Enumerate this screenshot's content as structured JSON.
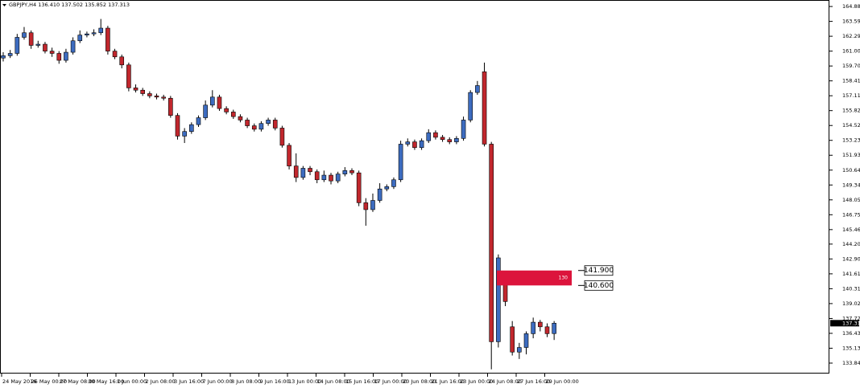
{
  "chart_data": {
    "type": "candlestick",
    "title": "GBPJPY,H4  136.410 137.502 135.852 137.313",
    "open": [
      160.4,
      160.6,
      160.8,
      162.2,
      162.6,
      161.5,
      161.6,
      161.0,
      160.8,
      160.2,
      160.9,
      161.9,
      162.4,
      162.5,
      162.6,
      163.0,
      161.0,
      160.5,
      159.8,
      157.8,
      157.6,
      157.3,
      157.1,
      157.0,
      156.9,
      155.4,
      153.6,
      154.0,
      154.6,
      155.2,
      156.3,
      157.0,
      156.0,
      155.7,
      155.3,
      155.0,
      154.5,
      154.2,
      154.7,
      155.0,
      154.3,
      152.8,
      151.0,
      150.0,
      150.8,
      150.5,
      149.8,
      150.2,
      149.7,
      150.3,
      150.6,
      150.4,
      147.8,
      147.2,
      148.0,
      149.0,
      149.2,
      149.8,
      152.9,
      153.1,
      152.6,
      153.2,
      153.9,
      153.5,
      153.3,
      153.1,
      153.4,
      155.0,
      157.4,
      159.2,
      152.9,
      135.7,
      141.0,
      137.0,
      134.8,
      135.2,
      136.4,
      137.4,
      137.0,
      136.41
    ],
    "high": [
      160.9,
      161.1,
      162.5,
      163.1,
      162.8,
      161.9,
      161.8,
      161.3,
      161.0,
      161.2,
      162.2,
      162.8,
      162.7,
      162.9,
      163.8,
      163.2,
      161.2,
      160.7,
      160.0,
      158.1,
      157.8,
      157.5,
      157.3,
      157.2,
      157.1,
      155.6,
      154.3,
      154.8,
      155.4,
      156.7,
      157.6,
      157.2,
      156.2,
      155.9,
      155.5,
      155.2,
      154.7,
      154.9,
      155.2,
      155.2,
      154.5,
      153.0,
      152.1,
      151.0,
      151.0,
      150.7,
      150.6,
      150.4,
      150.5,
      150.9,
      150.8,
      150.6,
      148.2,
      148.6,
      149.5,
      149.4,
      150.0,
      153.2,
      153.4,
      153.3,
      153.4,
      154.2,
      154.1,
      153.7,
      153.5,
      153.6,
      155.3,
      157.6,
      158.4,
      160.0,
      153.1,
      143.3,
      141.7,
      137.5,
      135.6,
      136.6,
      137.8,
      137.6,
      137.3,
      137.502
    ],
    "low": [
      160.1,
      160.4,
      160.6,
      162.0,
      161.2,
      161.3,
      160.8,
      160.5,
      159.9,
      160.0,
      160.7,
      161.7,
      162.2,
      162.3,
      162.4,
      160.7,
      160.3,
      159.5,
      157.5,
      157.4,
      157.1,
      156.9,
      156.8,
      156.7,
      155.2,
      153.3,
      153.0,
      153.8,
      154.4,
      155.0,
      156.1,
      155.8,
      155.5,
      155.1,
      154.8,
      154.3,
      154.0,
      154.0,
      154.5,
      154.1,
      152.6,
      150.7,
      149.6,
      149.8,
      150.2,
      149.5,
      149.6,
      149.4,
      149.5,
      150.1,
      150.2,
      147.5,
      145.8,
      147.0,
      147.8,
      148.8,
      149.0,
      149.6,
      152.7,
      152.4,
      152.4,
      153.0,
      153.3,
      153.1,
      152.9,
      152.9,
      153.2,
      154.8,
      157.2,
      152.7,
      133.3,
      135.2,
      138.8,
      134.5,
      134.2,
      134.6,
      136.0,
      136.6,
      136.1,
      135.852
    ],
    "close": [
      160.6,
      160.8,
      162.2,
      162.6,
      161.5,
      161.6,
      161.0,
      160.8,
      160.2,
      160.9,
      161.9,
      162.4,
      162.5,
      162.6,
      163.0,
      161.0,
      160.5,
      159.8,
      157.8,
      157.6,
      157.3,
      157.1,
      157.0,
      156.9,
      155.4,
      153.6,
      154.0,
      154.6,
      155.2,
      156.3,
      157.0,
      156.0,
      155.7,
      155.3,
      155.0,
      154.5,
      154.2,
      154.7,
      155.0,
      154.3,
      152.8,
      151.0,
      150.0,
      150.8,
      150.5,
      149.8,
      150.2,
      149.7,
      150.3,
      150.6,
      150.4,
      147.8,
      147.2,
      148.0,
      149.0,
      149.2,
      149.8,
      152.9,
      153.1,
      152.6,
      153.2,
      153.9,
      153.5,
      153.3,
      153.1,
      153.4,
      155.0,
      157.4,
      158.0,
      152.9,
      135.7,
      143.0,
      139.2,
      134.8,
      135.2,
      136.4,
      137.4,
      137.0,
      136.4,
      137.313
    ],
    "up_color": "#3d6cc0",
    "down_color": "#c1272d",
    "ylim": [
      132.93,
      165.31
    ],
    "yticks": [
      164.885,
      {
        "value": 163.59,
        "label": "163.590"
      },
      162.295,
      {
        "value": 161.0,
        "label": "161.000"
      },
      159.705,
      {
        "value": 158.41,
        "label": "158.410"
      },
      157.115,
      {
        "value": 155.82,
        "label": "155.820"
      },
      154.525,
      {
        "value": 153.23,
        "label": "153.230"
      },
      151.935,
      {
        "value": 150.64,
        "label": "150.640"
      },
      149.345,
      {
        "value": 148.05,
        "label": "148.050"
      },
      146.755,
      {
        "value": 145.46,
        "label": "145.460"
      },
      {
        "value": 144.2,
        "label": "144.200"
      },
      142.905,
      {
        "value": 141.61,
        "label": "141.610"
      },
      140.315,
      {
        "value": 139.02,
        "label": "139.020"
      },
      137.725,
      {
        "value": 136.43,
        "label": "136.430"
      },
      135.135,
      {
        "value": 133.84,
        "label": "133.840"
      }
    ],
    "x_labels": [
      "24 May 2016",
      "26 May 00:00",
      "27 May 08:00",
      "30 May 16:00",
      "1 Jun 00:00",
      "2 Jun 08:00",
      "3 Jun 16:00",
      "7 Jun 00:00",
      "8 Jun 08:00",
      "9 Jun 16:00",
      "13 Jun 00:00",
      "14 Jun 08:00",
      "15 Jun 16:00",
      "17 Jun 00:00",
      "20 Jun 08:00",
      "21 Jun 16:00",
      "23 Jun 00:00",
      "24 Jun 08:00",
      "27 Jun 16:00",
      "29 Jun 00:00"
    ],
    "current_price": 137.313,
    "zone": {
      "label": "130",
      "color": "#dc143c",
      "top": {
        "value": 141.9,
        "label": "141.900"
      },
      "bottom": {
        "value": 140.6,
        "label": "140.600"
      }
    }
  }
}
